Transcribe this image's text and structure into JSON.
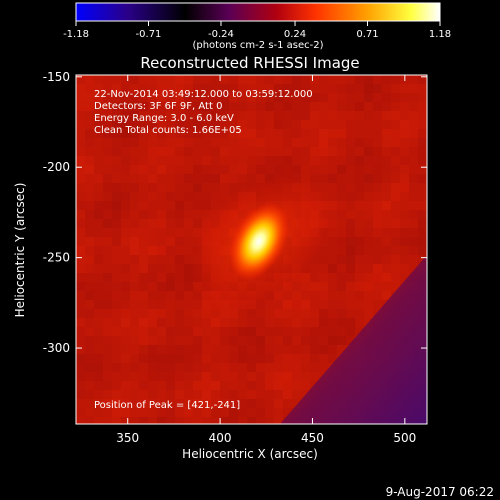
{
  "chart_data": {
    "type": "heatmap",
    "title": "Reconstructed RHESSI Image",
    "xlabel": "Heliocentric X (arcsec)",
    "ylabel": "Heliocentric Y (arcsec)",
    "xlim": [
      322,
      512
    ],
    "ylim": [
      -342,
      -149
    ],
    "x_ticks": [
      350,
      400,
      450,
      500
    ],
    "y_ticks": [
      -150,
      -200,
      -250,
      -300
    ],
    "colorbar": {
      "ticks": [
        "-1.18",
        "-0.71",
        "-0.24",
        "0.24",
        "0.71",
        "1.18"
      ],
      "min": -1.18,
      "max": 1.18,
      "unit_label": "(photons cm-2 s-1 asec-2)",
      "colors": [
        "#0000ff",
        "#2a008a",
        "#000000",
        "#5a0055",
        "#b00010",
        "#ff3300",
        "#ffa000",
        "#ffff40",
        "#ffffff"
      ]
    },
    "annotations": [
      "22-Nov-2014 03:49:12.000 to 03:59:12.000",
      "Detectors: 3F 6F 9F, Att 0",
      "Energy Range: 3.0 - 6.0 keV",
      "Clean     Total counts: 1.66E+05"
    ],
    "peak_label": "Position of Peak = [421,-241]",
    "peak": [
      421,
      -241
    ],
    "background_level": 0.45,
    "timestamp": "9-Aug-2017 06:22"
  }
}
